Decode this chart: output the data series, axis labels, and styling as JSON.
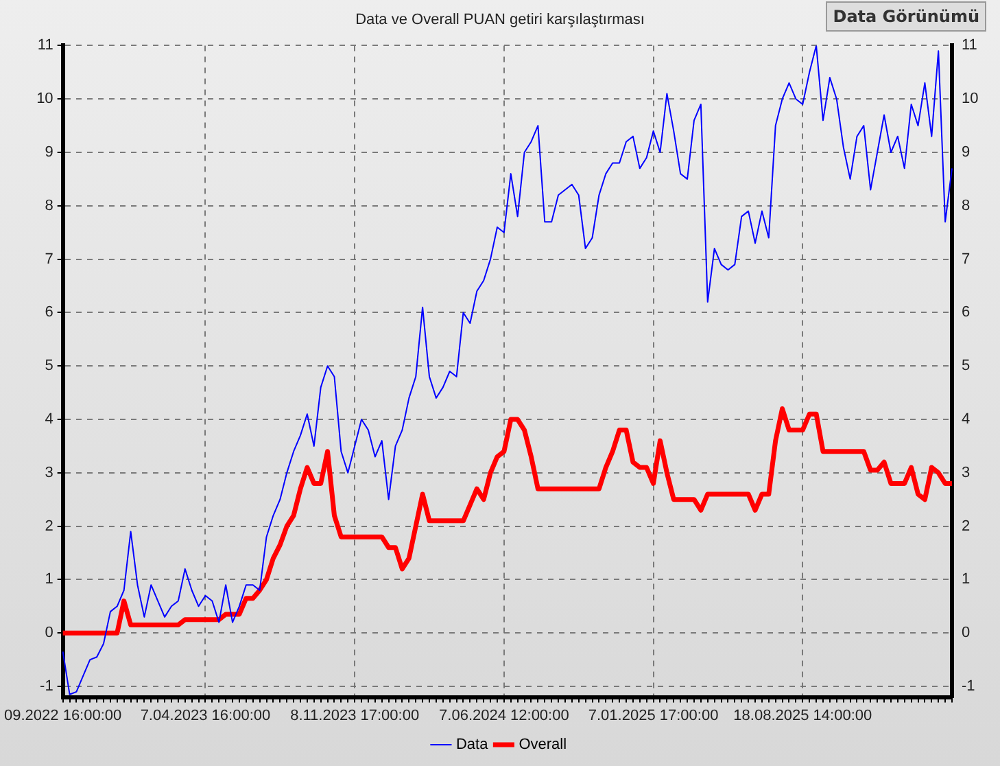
{
  "chart_data": {
    "type": "line",
    "title": "Data ve Overall PUAN getiri karşılaştırması",
    "annotations": [
      "Data Görünümü"
    ],
    "categories": [
      "09.2022 16:00:00",
      null,
      null,
      null,
      null,
      null,
      null,
      null,
      null,
      null,
      null,
      null,
      null,
      null,
      null,
      null,
      null,
      null,
      null,
      null,
      null,
      "7.04.2023 16:00:00",
      null,
      null,
      null,
      null,
      null,
      null,
      null,
      null,
      null,
      null,
      null,
      null,
      null,
      null,
      null,
      null,
      null,
      null,
      null,
      null,
      null,
      "8.11.2023 17:00:00",
      null,
      null,
      null,
      null,
      null,
      null,
      null,
      null,
      null,
      null,
      null,
      null,
      null,
      null,
      null,
      null,
      null,
      null,
      null,
      null,
      null,
      "7.06.2024 12:00:00",
      null,
      null,
      null,
      null,
      null,
      null,
      null,
      null,
      null,
      null,
      null,
      null,
      null,
      null,
      null,
      null,
      null,
      null,
      null,
      null,
      null,
      "7.01.2025 17:00:00",
      null,
      null,
      null,
      null,
      null,
      null,
      null,
      null,
      null,
      null,
      null,
      null,
      null,
      null,
      null,
      null,
      null,
      null,
      null,
      null,
      null,
      "18.08.2025 14:00:00",
      null,
      null,
      null,
      null,
      null,
      null,
      null,
      null,
      null,
      null,
      null,
      null,
      null,
      null,
      null,
      null,
      null,
      null,
      null,
      null,
      null,
      null
    ],
    "series": [
      {
        "name": "Data",
        "color": "#0000ff",
        "values": [
          -0.35,
          -1.15,
          -1.1,
          -0.8,
          -0.5,
          -0.45,
          -0.2,
          0.4,
          0.5,
          0.8,
          1.9,
          0.9,
          0.3,
          0.9,
          0.6,
          0.3,
          0.5,
          0.6,
          1.2,
          0.8,
          0.5,
          0.7,
          0.6,
          0.2,
          0.9,
          0.2,
          0.5,
          0.9,
          0.9,
          0.8,
          1.8,
          2.2,
          2.5,
          3.0,
          3.4,
          3.7,
          4.1,
          3.5,
          4.6,
          5.0,
          4.8,
          3.4,
          3.0,
          3.5,
          4.0,
          3.8,
          3.3,
          3.6,
          2.5,
          3.5,
          3.8,
          4.4,
          4.8,
          6.1,
          4.8,
          4.4,
          4.6,
          4.9,
          4.8,
          6.0,
          5.8,
          6.4,
          6.6,
          7.0,
          7.6,
          7.5,
          8.6,
          7.8,
          9.0,
          9.2,
          9.5,
          7.7,
          7.7,
          8.2,
          8.3,
          8.4,
          8.2,
          7.2,
          7.4,
          8.2,
          8.6,
          8.8,
          8.8,
          9.2,
          9.3,
          8.7,
          8.9,
          9.4,
          9.0,
          10.1,
          9.4,
          8.6,
          8.5,
          9.6,
          9.9,
          6.2,
          7.2,
          6.9,
          6.8,
          6.9,
          7.8,
          7.9,
          7.3,
          7.9,
          7.4,
          9.5,
          10.0,
          10.3,
          10.0,
          9.9,
          10.5,
          11.0,
          9.6,
          10.4,
          10.0,
          9.1,
          8.5,
          9.3,
          9.5,
          8.3,
          9.0,
          9.7,
          9.0,
          9.3,
          8.7,
          9.9,
          9.5,
          10.3,
          9.3,
          10.9,
          7.7,
          8.7
        ]
      },
      {
        "name": "Overall",
        "color": "#ff0000",
        "values": [
          0,
          0,
          0,
          0,
          0,
          0,
          0,
          0,
          0,
          0.6,
          0.15,
          0.15,
          0.15,
          0.15,
          0.15,
          0.15,
          0.15,
          0.15,
          0.25,
          0.25,
          0.25,
          0.25,
          0.25,
          0.25,
          0.35,
          0.35,
          0.35,
          0.65,
          0.65,
          0.8,
          1.0,
          1.4,
          1.65,
          2.0,
          2.2,
          2.7,
          3.1,
          2.8,
          2.8,
          3.4,
          2.2,
          1.8,
          1.8,
          1.8,
          1.8,
          1.8,
          1.8,
          1.8,
          1.6,
          1.6,
          1.2,
          1.4,
          2.0,
          2.6,
          2.1,
          2.1,
          2.1,
          2.1,
          2.1,
          2.1,
          2.4,
          2.7,
          2.5,
          3.0,
          3.3,
          3.4,
          4.0,
          4.0,
          3.8,
          3.3,
          2.7,
          2.7,
          2.7,
          2.7,
          2.7,
          2.7,
          2.7,
          2.7,
          2.7,
          2.7,
          3.1,
          3.4,
          3.8,
          3.8,
          3.2,
          3.1,
          3.1,
          2.8,
          3.6,
          3.0,
          2.5,
          2.5,
          2.5,
          2.5,
          2.3,
          2.6,
          2.6,
          2.6,
          2.6,
          2.6,
          2.6,
          2.6,
          2.3,
          2.6,
          2.6,
          3.6,
          4.2,
          3.8,
          3.8,
          3.8,
          4.1,
          4.1,
          3.4,
          3.4,
          3.4,
          3.4,
          3.4,
          3.4,
          3.4,
          3.05,
          3.05,
          3.2,
          2.8,
          2.8,
          2.8,
          3.1,
          2.6,
          2.5,
          3.1,
          3.0,
          2.8,
          2.8
        ]
      }
    ],
    "ylim": [
      -1.2,
      11
    ],
    "yticks": [
      -1,
      0,
      1,
      2,
      3,
      4,
      5,
      6,
      7,
      8,
      9,
      10,
      11
    ],
    "y2lim": [
      -1.2,
      11
    ],
    "y2ticks": [
      -1,
      0,
      1,
      2,
      3,
      4,
      5,
      6,
      7,
      8,
      9,
      10,
      11
    ],
    "grid": true,
    "legend": "bottom",
    "marker": "none",
    "line_style": "solid"
  }
}
